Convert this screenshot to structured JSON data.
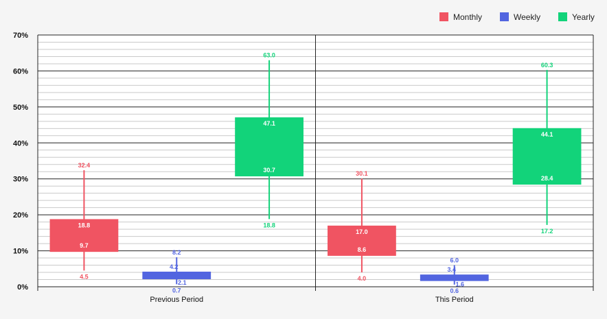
{
  "chart_data": {
    "type": "boxplot",
    "categories": [
      "Previous Period",
      "This Period"
    ],
    "y_ticks": [
      "0%",
      "10%",
      "20%",
      "30%",
      "40%",
      "50%",
      "60%",
      "70%"
    ],
    "ylim": [
      0,
      70
    ],
    "grid": true,
    "legend_position": "top-right",
    "series": [
      {
        "name": "Monthly",
        "color": "#f05462",
        "boxes": [
          {
            "min": 4.5,
            "q1": 9.7,
            "q3": 18.8,
            "max": 32.4,
            "labels": {
              "min": "4.5",
              "q1": "9.7",
              "q3": "18.8",
              "max": "32.4"
            }
          },
          {
            "min": 4.0,
            "q1": 8.6,
            "q3": 17.0,
            "max": 30.1,
            "labels": {
              "min": "4.0",
              "q1": "8.6",
              "q3": "17.0",
              "max": "30.1"
            }
          }
        ]
      },
      {
        "name": "Weekly",
        "color": "#5265e0",
        "boxes": [
          {
            "min": 0.7,
            "q1": 2.1,
            "q3": 4.2,
            "max": 8.2,
            "labels": {
              "min": "0.7",
              "q1": "2.1",
              "q3": "4.2",
              "max": "8.2"
            }
          },
          {
            "min": 0.6,
            "q1": 1.6,
            "q3": 3.4,
            "max": 6.0,
            "labels": {
              "min": "0.6",
              "q1": "1.6",
              "q3": "3.4",
              "max": "6.0"
            }
          }
        ]
      },
      {
        "name": "Yearly",
        "color": "#12d37a",
        "boxes": [
          {
            "min": 18.8,
            "q1": 30.7,
            "q3": 47.1,
            "max": 63.0,
            "labels": {
              "min": "18.8",
              "q1": "30.7",
              "q3": "47.1",
              "max": "63.0"
            }
          },
          {
            "min": 17.2,
            "q1": 28.4,
            "q3": 44.1,
            "max": 60.3,
            "labels": {
              "min": "17.2",
              "q1": "28.4",
              "q3": "44.1",
              "max": "60.3"
            }
          }
        ]
      }
    ]
  }
}
